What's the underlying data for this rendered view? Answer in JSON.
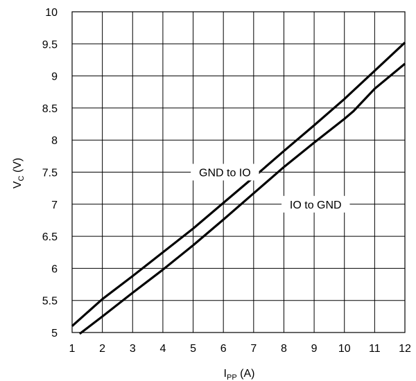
{
  "chart_data": {
    "type": "line",
    "title": "",
    "xlabel": {
      "main": "I",
      "sub": "PP",
      "unit": " (A)"
    },
    "ylabel": {
      "main": "V",
      "sub": "C",
      "unit": " (V)"
    },
    "xlim": [
      1,
      12
    ],
    "ylim": [
      5,
      10
    ],
    "xticks": [
      1,
      2,
      3,
      4,
      5,
      6,
      7,
      8,
      9,
      10,
      11,
      12
    ],
    "yticks": [
      5,
      5.5,
      6,
      6.5,
      7,
      7.5,
      8,
      8.5,
      9,
      9.5,
      10
    ],
    "ytick_labels": [
      "5",
      "5.5",
      "6",
      "6.5",
      "7",
      "7.5",
      "8",
      "8.5",
      "9",
      "9.5",
      "10"
    ],
    "grid": true,
    "series": [
      {
        "name": "GND to IO",
        "x": [
          1,
          2,
          3,
          4,
          5,
          6,
          7,
          8,
          9,
          10,
          11,
          12
        ],
        "y": [
          5.1,
          5.52,
          5.88,
          6.25,
          6.62,
          7.02,
          7.42,
          7.83,
          8.23,
          8.64,
          9.08,
          9.52
        ]
      },
      {
        "name": "IO to GND",
        "x": [
          1.25,
          2,
          3,
          4,
          5,
          6,
          7,
          8,
          9,
          10,
          10.3,
          11,
          12
        ],
        "y": [
          4.98,
          5.25,
          5.62,
          5.98,
          6.36,
          6.76,
          7.17,
          7.58,
          7.96,
          8.33,
          8.45,
          8.8,
          9.19
        ]
      }
    ],
    "annotations": [
      {
        "text": "GND to IO",
        "x": 6.05,
        "y": 7.5
      },
      {
        "text": "IO to GND",
        "x": 9.05,
        "y": 7.0
      }
    ]
  }
}
